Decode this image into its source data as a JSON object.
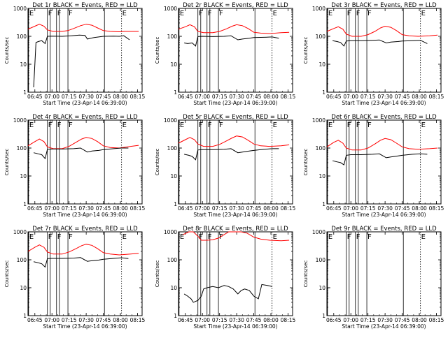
{
  "chart_data": {
    "type": "line",
    "layout": "3x3 grid of log-scale time series panels",
    "shared": {
      "xlabel": "Start Time (23-Apr-14 06:39:00)",
      "ylabel": "Counts/sec",
      "x_ticks": [
        "06:45",
        "07:00",
        "07:15",
        "07:30",
        "07:45",
        "08:00",
        "08:15"
      ],
      "x_tick_minutes": [
        6,
        21,
        36,
        51,
        66,
        81,
        96
      ],
      "xlim_minutes": [
        0,
        100
      ],
      "y_ticks": [
        "1",
        "10",
        "100",
        "1000"
      ],
      "ylim": [
        1,
        1000
      ],
      "y_scale": "log",
      "series_colors": {
        "events": "#000000",
        "lld": "#ff0000"
      },
      "marker_lines": [
        {
          "label": "E",
          "minute": 0.5,
          "style": "solid"
        },
        {
          "label": "F",
          "minute": 17,
          "style": "solid"
        },
        {
          "label": "F",
          "minute": 25,
          "style": "solid"
        },
        {
          "label": "F",
          "minute": 35,
          "style": "solid"
        },
        {
          "label": "E",
          "minute": 82,
          "style": "dotted"
        }
      ],
      "extra_lines": [
        {
          "minute": 19.5,
          "style": "solid"
        },
        {
          "minute": 27.5,
          "style": "solid"
        },
        {
          "minute": 67,
          "style": "solid"
        }
      ]
    },
    "panels": [
      {
        "title": "Det 1r BLACK = Events, RED = LLD",
        "events": [
          [
            5,
            1.5
          ],
          [
            7,
            60
          ],
          [
            9,
            65
          ],
          [
            12,
            70
          ],
          [
            15,
            55
          ],
          [
            17,
            100
          ],
          [
            21,
            102
          ],
          [
            30,
            100
          ],
          [
            38,
            105
          ],
          [
            45,
            110
          ],
          [
            50,
            108
          ],
          [
            52,
            80
          ],
          [
            55,
            85
          ],
          [
            58,
            90
          ],
          [
            62,
            95
          ],
          [
            66,
            100
          ],
          [
            75,
            102
          ],
          [
            80,
            100
          ],
          [
            84,
            105
          ],
          [
            89,
            75
          ]
        ],
        "lld": [
          [
            0,
            180
          ],
          [
            6,
            230
          ],
          [
            10,
            270
          ],
          [
            14,
            230
          ],
          [
            17,
            170
          ],
          [
            22,
            150
          ],
          [
            30,
            150
          ],
          [
            35,
            160
          ],
          [
            40,
            190
          ],
          [
            46,
            240
          ],
          [
            51,
            270
          ],
          [
            56,
            250
          ],
          [
            61,
            200
          ],
          [
            66,
            160
          ],
          [
            72,
            150
          ],
          [
            80,
            145
          ],
          [
            85,
            150
          ],
          [
            90,
            150
          ],
          [
            97,
            150
          ]
        ]
      },
      {
        "title": "Det 2r BLACK = Events, RED = LLD",
        "events": [
          [
            5,
            58
          ],
          [
            8,
            55
          ],
          [
            12,
            58
          ],
          [
            15,
            45
          ],
          [
            17,
            98
          ],
          [
            21,
            100
          ],
          [
            30,
            98
          ],
          [
            40,
            100
          ],
          [
            46,
            105
          ],
          [
            52,
            75
          ],
          [
            56,
            80
          ],
          [
            62,
            85
          ],
          [
            66,
            90
          ],
          [
            75,
            92
          ],
          [
            82,
            95
          ],
          [
            88,
            85
          ]
        ],
        "lld": [
          [
            0,
            180
          ],
          [
            6,
            220
          ],
          [
            10,
            260
          ],
          [
            14,
            220
          ],
          [
            17,
            150
          ],
          [
            22,
            135
          ],
          [
            30,
            135
          ],
          [
            36,
            150
          ],
          [
            42,
            185
          ],
          [
            47,
            230
          ],
          [
            51,
            260
          ],
          [
            56,
            240
          ],
          [
            61,
            190
          ],
          [
            66,
            140
          ],
          [
            72,
            130
          ],
          [
            80,
            125
          ],
          [
            90,
            135
          ],
          [
            97,
            140
          ]
        ]
      },
      {
        "title": "Det 3r BLACK = Events, RED = LLD",
        "events": [
          [
            5,
            70
          ],
          [
            9,
            65
          ],
          [
            12,
            60
          ],
          [
            15,
            45
          ],
          [
            17,
            68
          ],
          [
            21,
            70
          ],
          [
            30,
            70
          ],
          [
            40,
            72
          ],
          [
            46,
            74
          ],
          [
            52,
            58
          ],
          [
            56,
            62
          ],
          [
            62,
            65
          ],
          [
            66,
            68
          ],
          [
            75,
            70
          ],
          [
            82,
            72
          ],
          [
            88,
            55
          ]
        ],
        "lld": [
          [
            0,
            150
          ],
          [
            6,
            190
          ],
          [
            10,
            220
          ],
          [
            14,
            180
          ],
          [
            17,
            120
          ],
          [
            22,
            100
          ],
          [
            30,
            100
          ],
          [
            36,
            115
          ],
          [
            42,
            150
          ],
          [
            47,
            200
          ],
          [
            51,
            230
          ],
          [
            56,
            210
          ],
          [
            61,
            160
          ],
          [
            66,
            115
          ],
          [
            72,
            105
          ],
          [
            80,
            100
          ],
          [
            90,
            105
          ],
          [
            97,
            110
          ]
        ]
      },
      {
        "title": "Det 4r BLACK = Events, RED = LLD",
        "events": [
          [
            5,
            68
          ],
          [
            9,
            62
          ],
          [
            12,
            58
          ],
          [
            15,
            42
          ],
          [
            17,
            90
          ],
          [
            21,
            92
          ],
          [
            30,
            92
          ],
          [
            40,
            95
          ],
          [
            46,
            100
          ],
          [
            52,
            72
          ],
          [
            56,
            78
          ],
          [
            62,
            82
          ],
          [
            66,
            88
          ],
          [
            75,
            95
          ],
          [
            82,
            100
          ],
          [
            88,
            100
          ]
        ],
        "lld": [
          [
            0,
            120
          ],
          [
            6,
            170
          ],
          [
            10,
            210
          ],
          [
            14,
            170
          ],
          [
            17,
            110
          ],
          [
            22,
            95
          ],
          [
            30,
            95
          ],
          [
            36,
            115
          ],
          [
            42,
            160
          ],
          [
            47,
            210
          ],
          [
            51,
            240
          ],
          [
            56,
            220
          ],
          [
            61,
            170
          ],
          [
            66,
            120
          ],
          [
            72,
            105
          ],
          [
            80,
            100
          ],
          [
            90,
            115
          ],
          [
            97,
            125
          ]
        ]
      },
      {
        "title": "Det 5r BLACK = Events, RED = LLD",
        "events": [
          [
            5,
            60
          ],
          [
            9,
            55
          ],
          [
            12,
            50
          ],
          [
            15,
            38
          ],
          [
            17,
            85
          ],
          [
            21,
            88
          ],
          [
            30,
            88
          ],
          [
            40,
            90
          ],
          [
            46,
            95
          ],
          [
            52,
            68
          ],
          [
            56,
            72
          ],
          [
            62,
            78
          ],
          [
            66,
            82
          ],
          [
            75,
            90
          ],
          [
            82,
            95
          ],
          [
            88,
            95
          ]
        ],
        "lld": [
          [
            0,
            150
          ],
          [
            6,
            200
          ],
          [
            10,
            240
          ],
          [
            14,
            200
          ],
          [
            17,
            140
          ],
          [
            22,
            115
          ],
          [
            30,
            115
          ],
          [
            36,
            135
          ],
          [
            42,
            180
          ],
          [
            47,
            230
          ],
          [
            51,
            270
          ],
          [
            56,
            250
          ],
          [
            61,
            190
          ],
          [
            66,
            140
          ],
          [
            72,
            120
          ],
          [
            80,
            115
          ],
          [
            90,
            120
          ],
          [
            97,
            130
          ]
        ]
      },
      {
        "title": "Det 6r BLACK = Events, RED = LLD",
        "events": [
          [
            5,
            35
          ],
          [
            9,
            32
          ],
          [
            12,
            30
          ],
          [
            15,
            25
          ],
          [
            17,
            55
          ],
          [
            21,
            58
          ],
          [
            30,
            58
          ],
          [
            40,
            60
          ],
          [
            46,
            62
          ],
          [
            52,
            45
          ],
          [
            56,
            48
          ],
          [
            62,
            52
          ],
          [
            66,
            55
          ],
          [
            75,
            60
          ],
          [
            82,
            62
          ],
          [
            88,
            60
          ]
        ],
        "lld": [
          [
            0,
            110
          ],
          [
            6,
            160
          ],
          [
            10,
            190
          ],
          [
            14,
            150
          ],
          [
            17,
            100
          ],
          [
            22,
            85
          ],
          [
            30,
            85
          ],
          [
            36,
            100
          ],
          [
            42,
            140
          ],
          [
            47,
            190
          ],
          [
            51,
            220
          ],
          [
            56,
            200
          ],
          [
            61,
            150
          ],
          [
            66,
            110
          ],
          [
            72,
            95
          ],
          [
            80,
            90
          ],
          [
            90,
            95
          ],
          [
            97,
            100
          ]
        ]
      },
      {
        "title": "Det 7r BLACK = Events, RED = LLD",
        "events": [
          [
            5,
            85
          ],
          [
            9,
            78
          ],
          [
            12,
            72
          ],
          [
            15,
            55
          ],
          [
            17,
            110
          ],
          [
            21,
            112
          ],
          [
            30,
            112
          ],
          [
            40,
            115
          ],
          [
            46,
            120
          ],
          [
            52,
            88
          ],
          [
            56,
            92
          ],
          [
            62,
            98
          ],
          [
            66,
            105
          ],
          [
            75,
            112
          ],
          [
            82,
            118
          ],
          [
            88,
            110
          ]
        ],
        "lld": [
          [
            0,
            200
          ],
          [
            6,
            280
          ],
          [
            10,
            340
          ],
          [
            14,
            280
          ],
          [
            17,
            190
          ],
          [
            22,
            160
          ],
          [
            30,
            160
          ],
          [
            36,
            190
          ],
          [
            42,
            250
          ],
          [
            47,
            320
          ],
          [
            51,
            360
          ],
          [
            56,
            330
          ],
          [
            61,
            250
          ],
          [
            66,
            180
          ],
          [
            72,
            160
          ],
          [
            80,
            150
          ],
          [
            90,
            160
          ],
          [
            97,
            170
          ]
        ]
      },
      {
        "title": "Det 8r BLACK = Events, RED = LLD",
        "events": [
          [
            5,
            6
          ],
          [
            8,
            5
          ],
          [
            11,
            4
          ],
          [
            13,
            3
          ],
          [
            17,
            3.5
          ],
          [
            20,
            5
          ],
          [
            22,
            9
          ],
          [
            25,
            10
          ],
          [
            30,
            11
          ],
          [
            35,
            10
          ],
          [
            40,
            12
          ],
          [
            44,
            11
          ],
          [
            48,
            9
          ],
          [
            52,
            6
          ],
          [
            55,
            8
          ],
          [
            58,
            9
          ],
          [
            62,
            8
          ],
          [
            66,
            5
          ],
          [
            70,
            4
          ],
          [
            73,
            13
          ],
          [
            78,
            12
          ],
          [
            82,
            11
          ]
        ],
        "lld": [
          [
            4,
            800
          ],
          [
            9,
            1200
          ],
          [
            13,
            1200
          ],
          [
            17,
            700
          ],
          [
            20,
            500
          ],
          [
            25,
            500
          ],
          [
            30,
            520
          ],
          [
            35,
            600
          ],
          [
            40,
            800
          ],
          [
            44,
            1000
          ],
          [
            49,
            1200
          ],
          [
            55,
            1100
          ],
          [
            60,
            900
          ],
          [
            66,
            650
          ],
          [
            72,
            550
          ],
          [
            80,
            500
          ],
          [
            90,
            480
          ],
          [
            97,
            500
          ]
        ]
      },
      {
        "title": "Det 9r BLACK = Events, RED = LLD",
        "events": [],
        "lld": []
      }
    ]
  }
}
